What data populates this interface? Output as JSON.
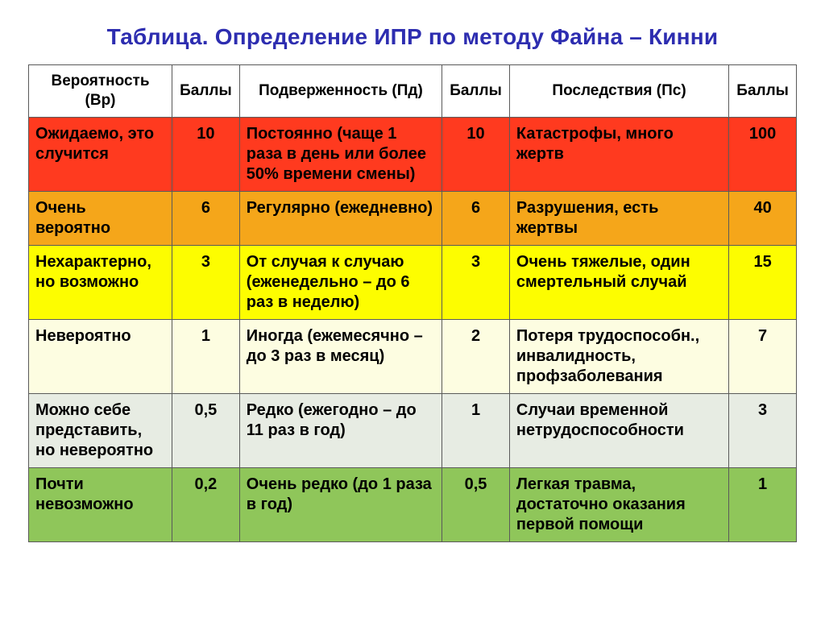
{
  "title_text": "Таблица. Определение ИПР по методу Файна – Кинни",
  "title_color": "#2d2db0",
  "headers": {
    "c1": "Вероятность (Вр)",
    "c2": "Баллы",
    "c3": "Подверженность (Пд)",
    "c4": "Баллы",
    "c5": "Последствия (Пс)",
    "c6": "Баллы"
  },
  "rows": [
    {
      "bg": "#ff3a1f",
      "prob": "Ожидаемо, это случится",
      "prob_score": "10",
      "exp": "Постоянно (чаще 1 раза в день или более 50% времени смены)",
      "exp_score": "10",
      "cons": "Катастрофы, много жертв",
      "cons_score": "100"
    },
    {
      "bg": "#f5a61a",
      "prob": "Очень вероятно",
      "prob_score": "6",
      "exp": "Регулярно (ежедневно)",
      "exp_score": "6",
      "cons": "Разрушения, есть жертвы",
      "cons_score": "40"
    },
    {
      "bg": "#fdfd00",
      "prob": "Нехарактерно, но возможно",
      "prob_score": "3",
      "exp": "От случая к случаю (еженедельно – до 6 раз в неделю)",
      "exp_score": "3",
      "cons": "Очень тяжелые, один смертельный случай",
      "cons_score": "15"
    },
    {
      "bg": "#fdfde1",
      "prob": "Невероятно",
      "prob_score": "1",
      "exp": "Иногда (ежемесячно – до 3 раз в месяц)",
      "exp_score": "2",
      "cons": "Потеря трудоспособн., инвалидность, профзаболевания",
      "cons_score": "7"
    },
    {
      "bg": "#e7ece3",
      "prob": "Можно себе представить, но невероятно",
      "prob_score": "0,5",
      "exp": "Редко (ежегодно – до 11 раз в год)",
      "exp_score": "1",
      "cons": "Случаи временной нетрудоспособности",
      "cons_score": "3"
    },
    {
      "bg": "#8fc65a",
      "prob": "Почти невозможно",
      "prob_score": "0,2",
      "exp": "Очень редко (до 1 раза в год)",
      "exp_score": "0,5",
      "cons": "Легкая травма, достаточно оказания первой помощи",
      "cons_score": "1"
    }
  ]
}
